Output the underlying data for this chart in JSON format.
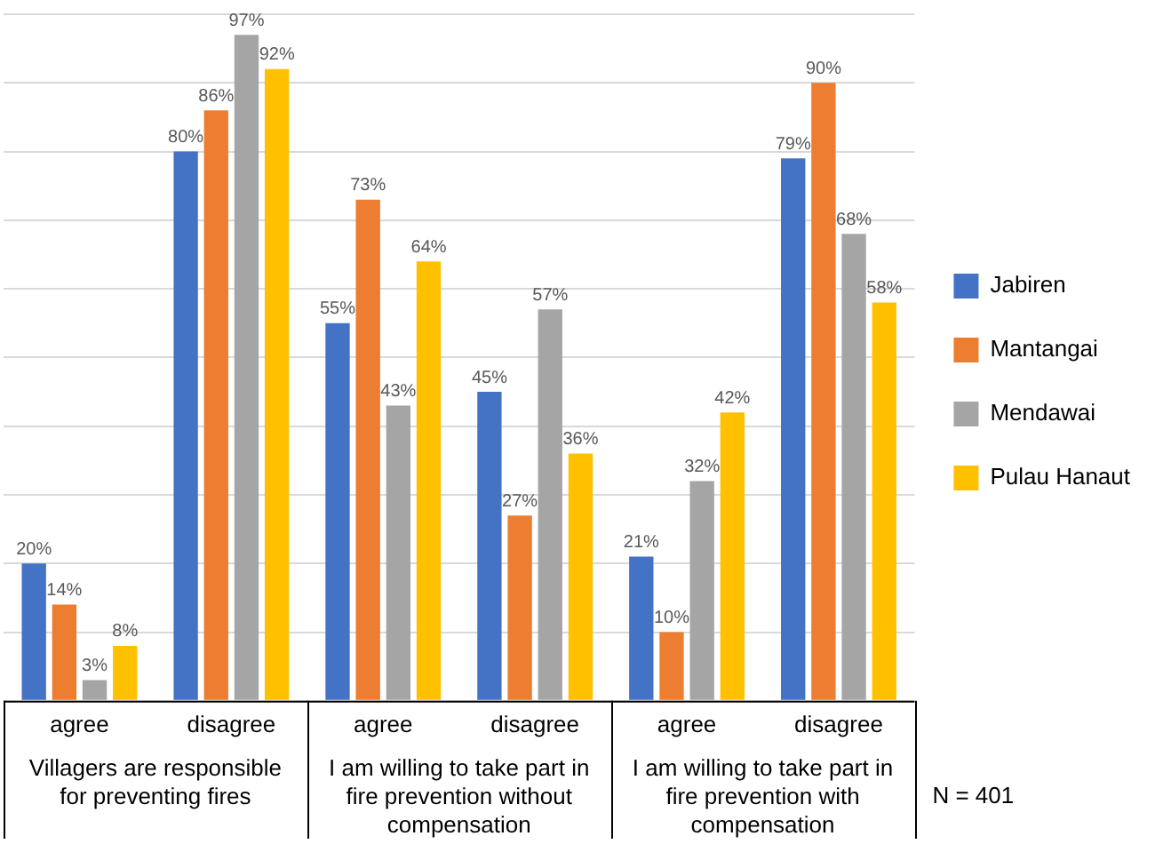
{
  "chart_data": {
    "type": "bar",
    "categories": [
      "agree",
      "disagree",
      "agree",
      "disagree",
      "agree",
      "disagree"
    ],
    "series": [
      {
        "name": "Jabiren",
        "color": "#4472c4",
        "values": [
          20,
          80,
          55,
          45,
          21,
          79
        ],
        "value_labels": [
          "20%",
          "80%",
          "55%",
          "45%",
          "21%",
          "79%"
        ]
      },
      {
        "name": "Mantangai",
        "color": "#ed7d31",
        "values": [
          14,
          86,
          73,
          27,
          10,
          90
        ],
        "value_labels": [
          "14%",
          "86%",
          "73%",
          "27%",
          "10%",
          "90%"
        ]
      },
      {
        "name": "Mendawai",
        "color": "#a5a5a5",
        "values": [
          3,
          97,
          43,
          57,
          32,
          68
        ],
        "value_labels": [
          "3%",
          "97%",
          "43%",
          "57%",
          "32%",
          "68%"
        ]
      },
      {
        "name": "Pulau Hanaut",
        "color": "#ffc000",
        "values": [
          8,
          92,
          64,
          36,
          42,
          58
        ],
        "value_labels": [
          "8%",
          "92%",
          "64%",
          "36%",
          "42%",
          "58%"
        ]
      }
    ],
    "tick_labels": "x",
    "grid": "y",
    "legend": "right",
    "annotations": [
      "Villagers are responsible for preventing fires",
      "I am willing to take part in fire prevention without compensation",
      "I am willing to take part in fire prevention with compensation",
      "N = 401"
    ]
  }
}
